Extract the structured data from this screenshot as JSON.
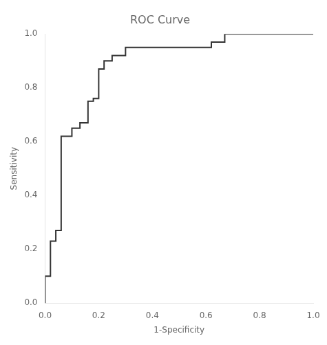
{
  "chart_data": {
    "type": "line",
    "title": "ROC Curve",
    "xlabel": "1-Specificity",
    "ylabel": "Sensitivity",
    "x": [
      0.0,
      0.0,
      0.02,
      0.02,
      0.04,
      0.04,
      0.06,
      0.06,
      0.1,
      0.1,
      0.13,
      0.13,
      0.16,
      0.16,
      0.18,
      0.18,
      0.2,
      0.2,
      0.22,
      0.22,
      0.25,
      0.25,
      0.3,
      0.3,
      0.62,
      0.62,
      0.67,
      0.67,
      1.0
    ],
    "values": [
      0.0,
      0.1,
      0.1,
      0.23,
      0.23,
      0.27,
      0.27,
      0.62,
      0.62,
      0.65,
      0.65,
      0.67,
      0.67,
      0.75,
      0.75,
      0.76,
      0.76,
      0.87,
      0.87,
      0.9,
      0.9,
      0.92,
      0.92,
      0.95,
      0.95,
      0.97,
      0.97,
      1.0,
      1.0
    ],
    "color": "#333333",
    "xlim": [
      0.0,
      1.0
    ],
    "ylim": [
      0.0,
      1.0
    ],
    "xticks": [
      {
        "value": 0,
        "label": "0.0"
      },
      0.2,
      0.4,
      0.6,
      0.8,
      {
        "value": 1,
        "label": "1.0"
      }
    ],
    "yticks": [
      {
        "value": 0,
        "label": "0.0"
      },
      0.2,
      0.4,
      0.6,
      0.8,
      {
        "value": 1,
        "label": "1.0"
      }
    ],
    "grid": false
  }
}
